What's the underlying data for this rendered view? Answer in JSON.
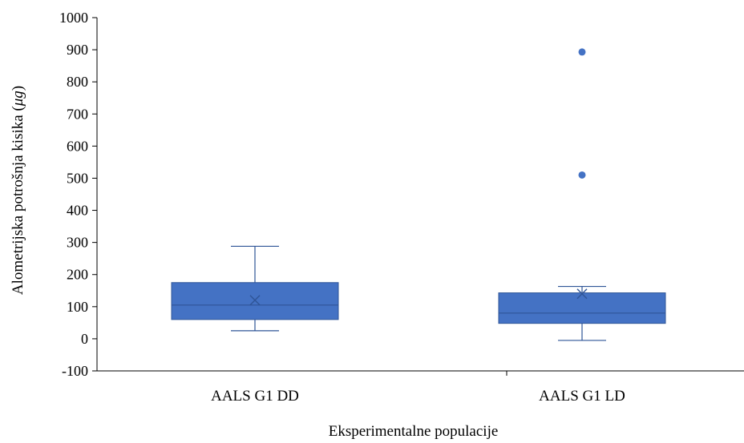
{
  "chart_data": {
    "type": "box",
    "title": "",
    "xlabel": "Eksperimentalne populacije",
    "ylabel": "Alometrijska potrošnja kisika (μg)",
    "ylabel_main": "Alometrijska potrošnja kisika (",
    "ylabel_unit": "μg",
    "ylabel_close": ")",
    "ylim": [
      -100,
      1000
    ],
    "yticks": [
      -100,
      0,
      100,
      200,
      300,
      400,
      500,
      600,
      700,
      800,
      900,
      1000
    ],
    "ytick_labels": [
      "-100",
      "0",
      "100",
      "200",
      "300",
      "400",
      "500",
      "600",
      "700",
      "800",
      "900",
      "1000"
    ],
    "categories": [
      "AALS G1 DD",
      "AALS G1 LD"
    ],
    "color": "#4472c4",
    "edge_color": "#2f5597",
    "grid": false,
    "legend": "none",
    "boxes": [
      {
        "category": "AALS G1 DD",
        "whisker_low": 25,
        "q1": 60,
        "median": 105,
        "q3": 175,
        "whisker_high": 288,
        "mean": 120,
        "outliers": []
      },
      {
        "category": "AALS G1 LD",
        "whisker_low": -5,
        "q1": 48,
        "median": 80,
        "q3": 143,
        "whisker_high": 163,
        "mean": 140,
        "outliers": [
          510,
          893
        ]
      }
    ]
  }
}
